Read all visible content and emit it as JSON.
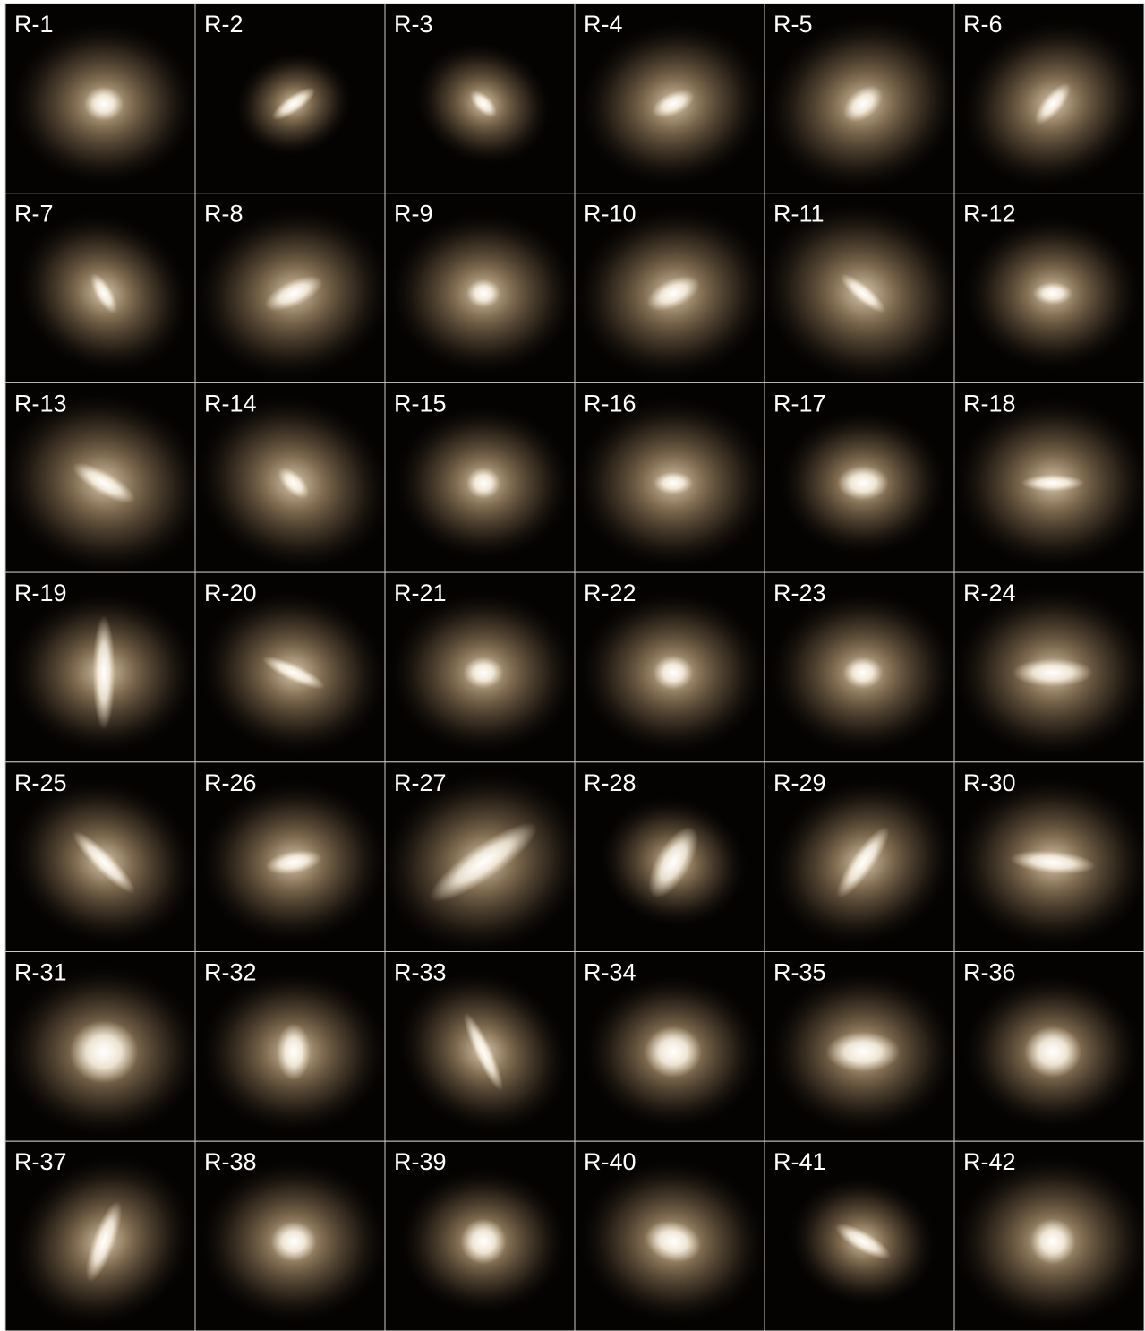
{
  "panels": [
    {
      "label": "R-1"
    },
    {
      "label": "R-2"
    },
    {
      "label": "R-3"
    },
    {
      "label": "R-4"
    },
    {
      "label": "R-5"
    },
    {
      "label": "R-6"
    },
    {
      "label": "R-7"
    },
    {
      "label": "R-8"
    },
    {
      "label": "R-9"
    },
    {
      "label": "R-10"
    },
    {
      "label": "R-11"
    },
    {
      "label": "R-12"
    },
    {
      "label": "R-13"
    },
    {
      "label": "R-14"
    },
    {
      "label": "R-15"
    },
    {
      "label": "R-16"
    },
    {
      "label": "R-17"
    },
    {
      "label": "R-18"
    },
    {
      "label": "R-19"
    },
    {
      "label": "R-20"
    },
    {
      "label": "R-21"
    },
    {
      "label": "R-22"
    },
    {
      "label": "R-23"
    },
    {
      "label": "R-24"
    },
    {
      "label": "R-25"
    },
    {
      "label": "R-26"
    },
    {
      "label": "R-27"
    },
    {
      "label": "R-28"
    },
    {
      "label": "R-29"
    },
    {
      "label": "R-30"
    },
    {
      "label": "R-31"
    },
    {
      "label": "R-32"
    },
    {
      "label": "R-33"
    },
    {
      "label": "R-34"
    },
    {
      "label": "R-35"
    },
    {
      "label": "R-36"
    },
    {
      "label": "R-37"
    },
    {
      "label": "R-38"
    },
    {
      "label": "R-39"
    },
    {
      "label": "R-40"
    },
    {
      "label": "R-41"
    },
    {
      "label": "R-42"
    }
  ]
}
